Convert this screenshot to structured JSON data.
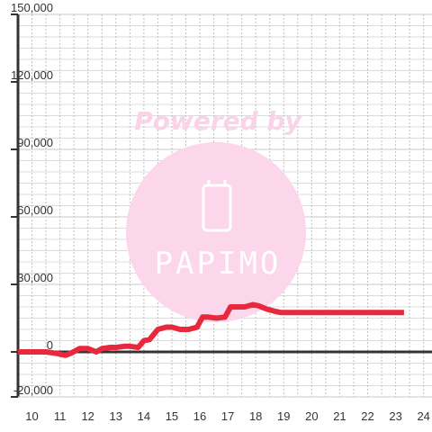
{
  "chart_data": {
    "type": "line",
    "title": "",
    "xlabel": "",
    "ylabel": "",
    "xlim": [
      9.5,
      24.3
    ],
    "ylim": [
      -20000,
      150000
    ],
    "x_ticks": [
      10,
      11,
      12,
      13,
      14,
      15,
      16,
      17,
      18,
      19,
      20,
      21,
      22,
      23,
      24
    ],
    "y_ticks": [
      150000,
      120000,
      90000,
      60000,
      30000,
      0,
      -20000
    ],
    "y_tick_labels": [
      "150,000",
      "120,000",
      "90,000",
      "60,000",
      "30,000",
      "0",
      "-20,000"
    ],
    "grid": true,
    "legend": "none",
    "series_color": "#e8283c",
    "series": [
      {
        "x": [
          9.5,
          10.5,
          10.9,
          11.2,
          11.4,
          11.7,
          12.0,
          12.3,
          12.5,
          12.8,
          13.0,
          13.3,
          13.5,
          13.8,
          14.0,
          14.2,
          14.5,
          14.8,
          15.0,
          15.3,
          15.6,
          15.9,
          16.1,
          16.3,
          16.6,
          16.9,
          17.1,
          17.3,
          17.6,
          17.9,
          18.1,
          18.4,
          18.7,
          18.9,
          19.1,
          19.5,
          20.0,
          21.0,
          22.0,
          23.0,
          23.3
        ],
        "y": [
          0,
          0,
          -700,
          -1500,
          -500,
          1500,
          1500,
          0,
          1500,
          2000,
          2000,
          2500,
          2500,
          2000,
          5000,
          5500,
          10000,
          11000,
          11000,
          10000,
          10000,
          11000,
          15500,
          15500,
          15000,
          15500,
          20000,
          20000,
          20000,
          21000,
          20500,
          19000,
          18000,
          17500,
          17500,
          17500,
          17500,
          17500,
          17500,
          17500,
          17500
        ]
      }
    ]
  },
  "watermark": {
    "powered_by": "Powered by",
    "brand": "PAPIMO",
    "circle_color": "#fcd6ea",
    "text_color": "#fbd3e6",
    "icon": "phone-icon"
  }
}
